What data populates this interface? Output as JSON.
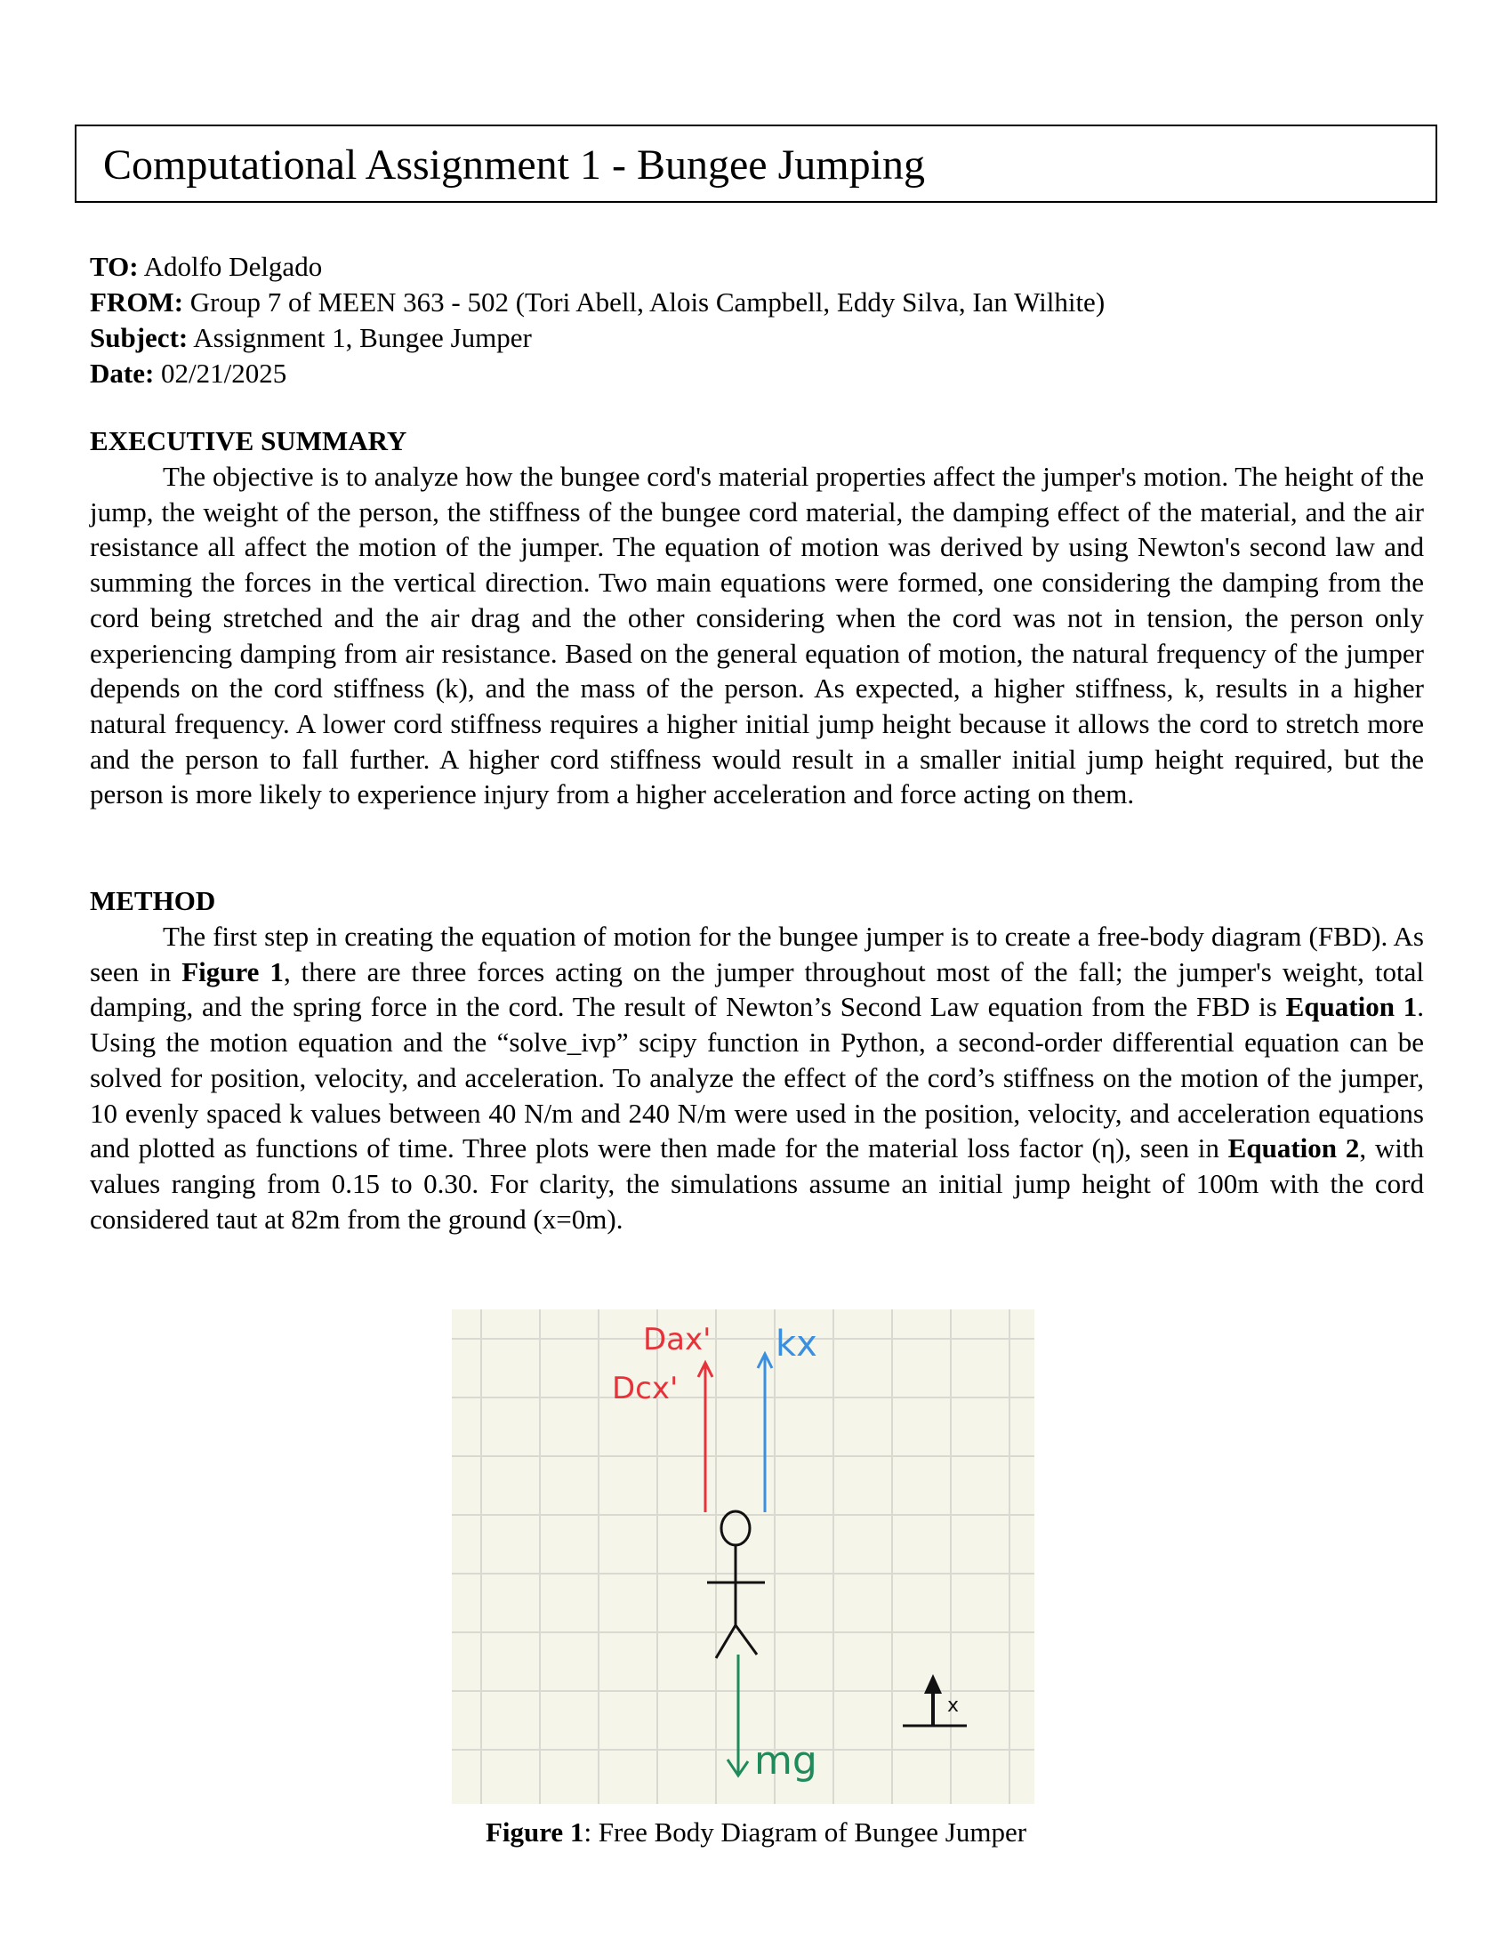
{
  "title": "Computational Assignment 1 - Bungee Jumping",
  "memo": {
    "to_label": "TO:",
    "to_value": " Adolfo Delgado",
    "from_label": "FROM:",
    "from_value": " Group 7 of MEEN 363 - 502 (Tori Abell, Alois Campbell, Eddy Silva, Ian Wilhite)",
    "subject_label": "Subject:",
    "subject_value": " Assignment 1, Bungee Jumper",
    "date_label": "Date:",
    "date_value": " 02/21/2025"
  },
  "executive_summary": {
    "heading": "EXECUTIVE SUMMARY",
    "text": "The objective is to analyze how the bungee cord's material properties affect the jumper's motion. The height of the jump, the weight of the person, the stiffness of the bungee cord material, the damping effect of the material, and the air resistance all affect the motion of the jumper. The equation of motion was derived by using Newton's second law and summing the forces in the vertical direction. Two main equations were formed, one considering the damping from the cord being stretched and the air drag and the other considering when the cord was not in tension, the person only experiencing damping from air resistance. Based on the general equation of motion, the natural frequency of the jumper depends on the cord stiffness (k), and the mass of the person. As expected, a higher stiffness, k, results in a higher natural frequency. A lower cord stiffness requires a higher initial jump height because it allows the cord to stretch more and the person to fall further. A higher cord stiffness would result in a smaller initial jump height required, but the person is more likely to experience injury from a higher acceleration and force acting on them."
  },
  "method": {
    "heading": "METHOD",
    "p1": "The first step in creating the equation of motion for the bungee jumper is to create a free-body diagram (FBD). As seen in ",
    "fig_ref": "Figure 1",
    "p2": ", there are three forces acting on the jumper throughout most of the fall; the jumper's weight, total damping, and the spring force in the cord. The result of Newton’s Second Law equation from the FBD is ",
    "eq1_ref": "Equation 1",
    "p3": ". Using the motion equation and the “solve_ivp” scipy function in Python, a second-order differential equation can be solved for position, velocity, and acceleration. To analyze the effect of the cord’s stiffness on the motion of the jumper, 10 evenly spaced k values between 40 N/m and 240 N/m were used in the position, velocity, and acceleration equations and plotted as functions of time. Three plots were then made for the material loss factor (η), seen in ",
    "eq2_ref": "Equation 2",
    "p4": ", with values ranging from 0.15 to 0.30. For clarity, the simulations assume an initial jump height of 100m with the cord considered taut at 82m from the ground (x=0m)."
  },
  "figure": {
    "labels": {
      "dax": "Dax'",
      "dcx": "Dcx'",
      "kx": "kx",
      "mg": "mg",
      "x": "x"
    },
    "colors": {
      "grid_bg": "#f6f5ea",
      "grid_line": "#d9d9d2",
      "damping": "#e8323a",
      "spring": "#3a8fe0",
      "weight": "#1f8a5b",
      "ink": "#111111"
    },
    "caption_label": "Figure 1",
    "caption_text": ": Free Body Diagram of Bungee Jumper"
  }
}
